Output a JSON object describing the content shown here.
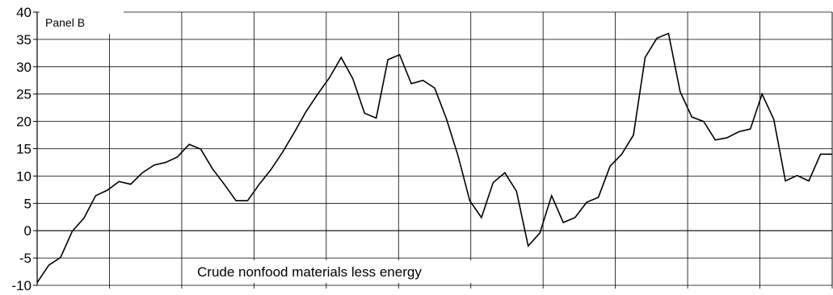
{
  "chart_data": {
    "type": "line",
    "panel_label": "Panel B",
    "annotation": "Crude nonfood materials less energy",
    "ylim": [
      -10,
      40
    ],
    "yticks": [
      40,
      35,
      30,
      25,
      20,
      15,
      10,
      5,
      0,
      -5,
      -10
    ],
    "vertical_gridlines": 11,
    "grid": true,
    "values": [
      -9.5,
      -6.3,
      -4.9,
      -0.1,
      2.3,
      6.4,
      7.4,
      9.0,
      8.5,
      10.6,
      12.0,
      12.5,
      13.5,
      15.8,
      14.9,
      11.3,
      8.5,
      5.5,
      5.5,
      8.5,
      11.2,
      14.4,
      18.0,
      21.8,
      25.0,
      28.0,
      31.7,
      27.8,
      21.5,
      20.6,
      31.3,
      32.2,
      26.9,
      27.5,
      26.1,
      20.5,
      13.7,
      5.5,
      2.4,
      8.8,
      10.6,
      7.2,
      -2.8,
      -0.4,
      6.4,
      1.5,
      2.4,
      5.2,
      6.1,
      11.8,
      14.0,
      17.5,
      31.7,
      35.2,
      36.1,
      25.4,
      20.8,
      20.0,
      16.6,
      17.0,
      18.1,
      18.6,
      25.0,
      20.4,
      9.1,
      10.1,
      9.1,
      14.0,
      14.0
    ]
  }
}
